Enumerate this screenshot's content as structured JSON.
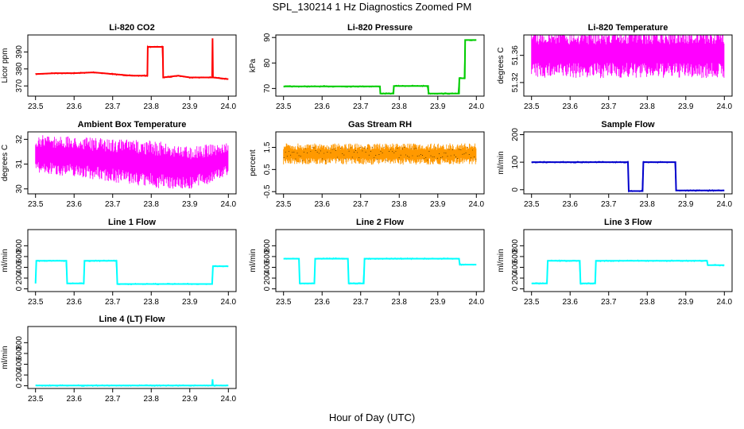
{
  "page": {
    "title": "SPL_130214  1 Hz Diagnostics Zoomed PM",
    "xlabel": "Hour of Day (UTC)"
  },
  "chart_data": [
    {
      "type": "line",
      "title": "Li-820 CO2",
      "ylabel": "Licor ppm",
      "color": "#ff0000",
      "xlim": [
        23.48,
        24.02
      ],
      "ylim": [
        364,
        400
      ],
      "xticks": [
        "23.5",
        "23.6",
        "23.7",
        "23.8",
        "23.9",
        "24.0"
      ],
      "yticks": [
        370,
        380,
        390
      ],
      "series": [
        {
          "x": [
            23.5,
            23.55,
            23.6,
            23.65,
            23.7,
            23.75,
            23.79,
            23.791,
            23.83,
            23.831,
            23.87,
            23.9,
            23.95,
            23.958,
            23.959,
            23.96,
            23.961,
            24.0
          ],
          "y": [
            377,
            377.5,
            377.5,
            378,
            377,
            376,
            376,
            393,
            393,
            375,
            376,
            375,
            375,
            375,
            398,
            375,
            375,
            374
          ]
        }
      ]
    },
    {
      "type": "line",
      "title": "Li-820 Pressure",
      "ylabel": "kPa",
      "color": "#00cc00",
      "xlim": [
        23.48,
        24.02
      ],
      "ylim": [
        67,
        91
      ],
      "xticks": [
        "23.5",
        "23.6",
        "23.7",
        "23.8",
        "23.9",
        "24.0"
      ],
      "yticks": [
        70,
        80,
        90
      ],
      "series": [
        {
          "x": [
            23.5,
            23.75,
            23.751,
            23.785,
            23.786,
            23.875,
            23.876,
            23.955,
            23.956,
            23.97,
            23.971,
            24.0
          ],
          "y": [
            70.8,
            70.8,
            68,
            68,
            71,
            71,
            68,
            68,
            74,
            74,
            89,
            89
          ]
        }
      ]
    },
    {
      "type": "area",
      "title": "Li-820 Temperature",
      "ylabel": "degrees C",
      "color": "#ff00ff",
      "xlim": [
        23.48,
        24.02
      ],
      "ylim": [
        51.3,
        51.39
      ],
      "xticks": [
        "23.5",
        "23.6",
        "23.7",
        "23.8",
        "23.9",
        "24.0"
      ],
      "yticks": [
        51.32,
        51.36
      ],
      "series": [
        {
          "name": "upper",
          "x": [
            23.5,
            24.0
          ],
          "y": [
            51.385,
            51.385
          ]
        },
        {
          "name": "lower",
          "x": [
            23.5,
            24.0
          ],
          "y": [
            51.34,
            51.34
          ]
        }
      ]
    },
    {
      "type": "area",
      "title": "Ambient Box Temperature",
      "ylabel": "degrees C",
      "color": "#ff00ff",
      "xlim": [
        23.48,
        24.02
      ],
      "ylim": [
        29.8,
        32.3
      ],
      "xticks": [
        "23.5",
        "23.6",
        "23.7",
        "23.8",
        "23.9",
        "24.0"
      ],
      "yticks": [
        30.0,
        31.0,
        32.0
      ],
      "series": [
        {
          "name": "upper",
          "x": [
            23.5,
            23.6,
            23.7,
            23.8,
            23.9,
            23.95,
            24.0
          ],
          "y": [
            31.9,
            31.8,
            31.7,
            31.6,
            31.4,
            31.5,
            31.6
          ]
        },
        {
          "name": "lower",
          "x": [
            23.5,
            23.6,
            23.7,
            23.8,
            23.9,
            23.95,
            24.0
          ],
          "y": [
            30.9,
            30.8,
            30.6,
            30.4,
            30.3,
            30.5,
            30.8
          ]
        }
      ]
    },
    {
      "type": "area",
      "title": "Gas Stream RH",
      "ylabel": "percent",
      "color": "#ff9900",
      "xlim": [
        23.48,
        24.02
      ],
      "ylim": [
        -0.6,
        2.2
      ],
      "xticks": [
        "23.5",
        "23.6",
        "23.7",
        "23.8",
        "23.9",
        "24.0"
      ],
      "yticks": [
        -0.5,
        0.5,
        1.5
      ],
      "series": [
        {
          "name": "upper",
          "x": [
            23.5,
            23.75,
            24.0
          ],
          "y": [
            1.5,
            1.5,
            1.5
          ]
        },
        {
          "name": "lower",
          "x": [
            23.5,
            23.75,
            24.0
          ],
          "y": [
            0.9,
            0.9,
            0.9
          ]
        }
      ]
    },
    {
      "type": "line",
      "title": "Sample Flow",
      "ylabel": "ml/min",
      "color": "#0000cc",
      "xlim": [
        23.48,
        24.02
      ],
      "ylim": [
        -15,
        210
      ],
      "xticks": [
        "23.5",
        "23.6",
        "23.7",
        "23.8",
        "23.9",
        "24.0"
      ],
      "yticks": [
        0,
        100,
        200
      ],
      "series": [
        {
          "x": [
            23.5,
            23.75,
            23.752,
            23.788,
            23.79,
            23.873,
            23.875,
            24.0
          ],
          "y": [
            100,
            100,
            -5,
            -5,
            100,
            100,
            -3,
            -3
          ]
        }
      ]
    },
    {
      "type": "line",
      "title": "Line 1 Flow",
      "ylabel": "ml/min",
      "color": "#00ffff",
      "xlim": [
        23.48,
        24.02
      ],
      "ylim": [
        -50,
        1100
      ],
      "xticks": [
        "23.5",
        "23.6",
        "23.7",
        "23.8",
        "23.9",
        "24.0"
      ],
      "yticks": [
        0,
        200,
        400,
        600,
        800
      ],
      "series": [
        {
          "x": [
            23.5,
            23.502,
            23.58,
            23.582,
            23.625,
            23.627,
            23.71,
            23.712,
            23.958,
            23.96,
            24.0
          ],
          "y": [
            100,
            520,
            520,
            100,
            100,
            520,
            520,
            90,
            90,
            420,
            420
          ]
        }
      ]
    },
    {
      "type": "line",
      "title": "Line 2 Flow",
      "ylabel": "ml/min",
      "color": "#00ffff",
      "xlim": [
        23.48,
        24.02
      ],
      "ylim": [
        -50,
        1100
      ],
      "xticks": [
        "23.5",
        "23.6",
        "23.7",
        "23.8",
        "23.9",
        "24.0"
      ],
      "yticks": [
        0,
        200,
        400,
        600,
        800
      ],
      "series": [
        {
          "x": [
            23.5,
            23.54,
            23.542,
            23.58,
            23.582,
            23.667,
            23.669,
            23.708,
            23.71,
            23.955,
            23.957,
            24.0
          ],
          "y": [
            560,
            560,
            100,
            100,
            560,
            560,
            100,
            100,
            560,
            560,
            450,
            450
          ]
        }
      ]
    },
    {
      "type": "line",
      "title": "Line 3 Flow",
      "ylabel": "ml/min",
      "color": "#00ffff",
      "xlim": [
        23.48,
        24.02
      ],
      "ylim": [
        -50,
        1100
      ],
      "xticks": [
        "23.5",
        "23.6",
        "23.7",
        "23.8",
        "23.9",
        "24.0"
      ],
      "yticks": [
        0,
        200,
        400,
        600,
        800
      ],
      "series": [
        {
          "x": [
            23.5,
            23.502,
            23.54,
            23.542,
            23.625,
            23.627,
            23.665,
            23.667,
            23.955,
            23.957,
            24.0
          ],
          "y": [
            100,
            100,
            100,
            520,
            520,
            100,
            100,
            520,
            520,
            440,
            440
          ]
        }
      ]
    },
    {
      "type": "line",
      "title": "Line 4 (LT) Flow",
      "ylabel": "ml/min",
      "color": "#00ffff",
      "xlim": [
        23.48,
        24.02
      ],
      "ylim": [
        -50,
        1100
      ],
      "xticks": [
        "23.5",
        "23.6",
        "23.7",
        "23.8",
        "23.9",
        "24.0"
      ],
      "yticks": [
        0,
        200,
        400,
        600,
        800
      ],
      "series": [
        {
          "x": [
            23.5,
            23.958,
            23.959,
            23.96,
            23.961,
            24.0
          ],
          "y": [
            5,
            5,
            120,
            5,
            5,
            5
          ]
        }
      ]
    }
  ]
}
